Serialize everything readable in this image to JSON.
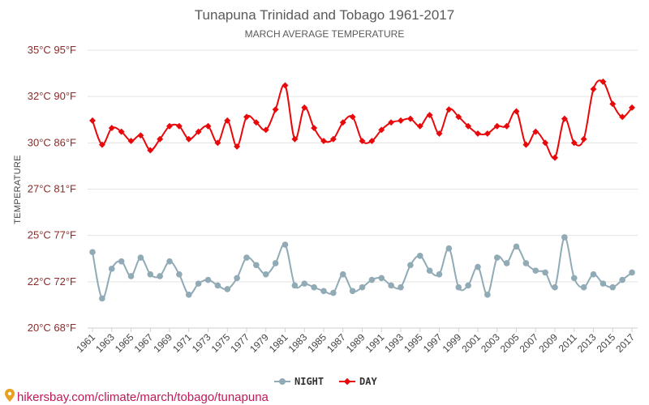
{
  "chart_data": {
    "type": "line",
    "title": "Tunapuna Trinidad and Tobago 1961-2017",
    "subtitle": "MARCH AVERAGE TEMPERATURE",
    "ylabel": "TEMPERATURE",
    "ylim": [
      20,
      35
    ],
    "y_ticks": [
      {
        "value": 20,
        "label": "20°C 68°F"
      },
      {
        "value": 22.5,
        "label": "22°C 72°F"
      },
      {
        "value": 25,
        "label": "25°C 77°F"
      },
      {
        "value": 27.5,
        "label": "27°C 81°F"
      },
      {
        "value": 30,
        "label": "30°C 86°F"
      },
      {
        "value": 32.5,
        "label": "32°C 90°F"
      },
      {
        "value": 35,
        "label": "35°C 95°F"
      }
    ],
    "x_ticks": [
      "1961",
      "1963",
      "1965",
      "1967",
      "1969",
      "1971",
      "1973",
      "1975",
      "1977",
      "1979",
      "1981",
      "1983",
      "1985",
      "1987",
      "1989",
      "1991",
      "1993",
      "1995",
      "1997",
      "1999",
      "2001",
      "2003",
      "2005",
      "2007",
      "2009",
      "2011",
      "2013",
      "2015",
      "2017"
    ],
    "x_start": 1961,
    "grid": true,
    "legend_position": "bottom-center",
    "series": [
      {
        "name": "NIGHT",
        "color": "#90aab6",
        "values": [
          24.1,
          21.6,
          23.2,
          23.6,
          22.8,
          23.8,
          22.9,
          22.8,
          23.6,
          22.9,
          21.8,
          22.4,
          22.6,
          22.3,
          22.1,
          22.7,
          23.8,
          23.4,
          22.9,
          23.5,
          24.5,
          22.3,
          22.4,
          22.2,
          22.0,
          21.9,
          22.9,
          22.0,
          22.2,
          22.6,
          22.7,
          22.3,
          22.2,
          23.4,
          23.9,
          23.1,
          22.9,
          24.3,
          22.2,
          22.3,
          23.3,
          21.8,
          23.8,
          23.5,
          24.4,
          23.5,
          23.1,
          23.0,
          22.2,
          24.9,
          22.7,
          22.2,
          22.9,
          22.4,
          22.2,
          22.6,
          23.0
        ]
      },
      {
        "name": "DAY",
        "color": "#e8080a",
        "values": [
          31.2,
          29.9,
          30.8,
          30.6,
          30.1,
          30.4,
          29.6,
          30.2,
          30.9,
          30.9,
          30.2,
          30.6,
          30.9,
          30.0,
          31.2,
          29.8,
          31.4,
          31.1,
          30.7,
          31.8,
          33.1,
          30.2,
          31.9,
          30.8,
          30.1,
          30.2,
          31.1,
          31.4,
          30.1,
          30.1,
          30.7,
          31.1,
          31.2,
          31.3,
          30.9,
          31.5,
          30.5,
          31.8,
          31.4,
          30.9,
          30.5,
          30.5,
          30.9,
          30.9,
          31.7,
          29.9,
          30.6,
          30.0,
          29.2,
          31.3,
          30.0,
          30.2,
          32.9,
          33.3,
          32.1,
          31.4,
          31.9
        ]
      }
    ]
  },
  "footer": {
    "icon": "location-pin-icon",
    "text": "hikersbay.com/climate/march/tobago/tunapuna"
  }
}
